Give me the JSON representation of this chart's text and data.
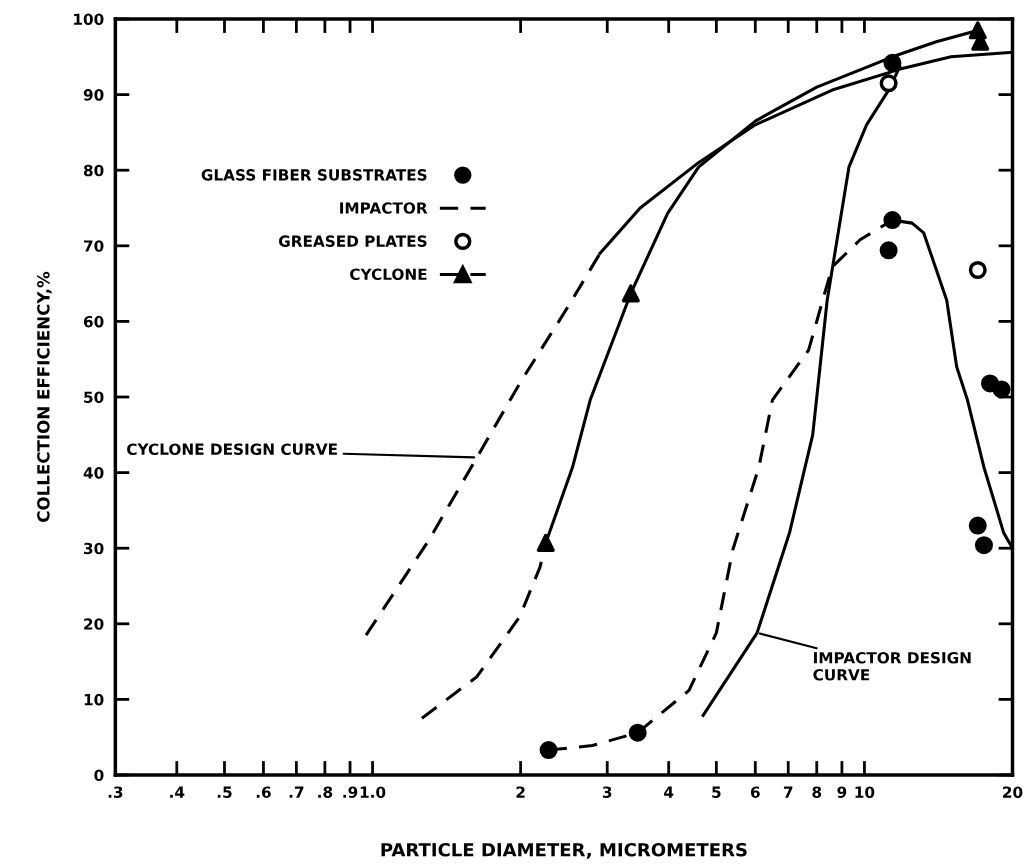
{
  "chart_data": {
    "type": "line",
    "xlabel": "PARTICLE DIAMETER, MICROMETERS",
    "ylabel": "COLLECTION EFFICIENCY,%",
    "log": "x",
    "xlim": [
      0.3,
      20
    ],
    "ylim": [
      0,
      100
    ],
    "xticks": [
      {
        "value": 0.3,
        "label": ".3"
      },
      {
        "value": 0.4,
        "label": ".4"
      },
      {
        "value": 0.5,
        "label": ".5"
      },
      {
        "value": 0.6,
        "label": ".6"
      },
      {
        "value": 0.7,
        "label": ".7"
      },
      {
        "value": 0.8,
        "label": ".8"
      },
      {
        "value": 0.9,
        "label": ".9"
      },
      {
        "value": 1.0,
        "label": "1.0"
      },
      2,
      3,
      4,
      5,
      6,
      7,
      8,
      9,
      10,
      20
    ],
    "yticks": [
      0,
      10,
      20,
      30,
      40,
      50,
      60,
      70,
      80,
      90,
      100
    ],
    "grid": false,
    "legend": "top left",
    "series": [
      {
        "name": "GLASS FIBER SUBSTRATES",
        "type": "scatter",
        "marker": "circle",
        "color": "#000000",
        "x": [
          2.28,
          3.46,
          11.4,
          11.2,
          11.4,
          17,
          17.5,
          18,
          19
        ],
        "values": [
          3.3,
          5.6,
          73.4,
          69.4,
          94.2,
          33,
          30.4,
          51.8,
          51
        ]
      },
      {
        "name": "IMPACTOR",
        "line_style": "dashed",
        "color": "#000000",
        "x": [
          2.28,
          2.8,
          3.46,
          4.4,
          5.0,
          5.4,
          6.1,
          6.5,
          7.7,
          8.6,
          9.8,
          11.4
        ],
        "values": [
          3.3,
          3.9,
          5.6,
          11.2,
          18.8,
          29.8,
          40.7,
          49.6,
          56.2,
          67.2,
          70.8,
          73.4
        ]
      },
      {
        "line_style": "solid",
        "color": "#000000",
        "x": [
          11.4,
          12.5,
          13.2,
          14.7,
          15.4,
          16.2,
          17.5,
          19.2,
          20
        ],
        "values": [
          73.4,
          73,
          71.7,
          62.8,
          54,
          49.6,
          40.7,
          32,
          30
        ]
      },
      {
        "name": "GREASED PLATES",
        "type": "scatter",
        "marker": "circle",
        "color": "#ffffff",
        "x": [
          11.2,
          17
        ],
        "values": [
          91.5,
          66.8
        ]
      },
      {
        "line_style": "dashed",
        "color": "#000000",
        "x": [
          1.26,
          1.63,
          1.99,
          2.19,
          2.25
        ],
        "values": [
          7.5,
          13,
          20.9,
          27.5,
          30.7
        ]
      },
      {
        "line_style": "solid",
        "color": "#000000",
        "x": [
          2.25,
          2.55,
          2.77,
          3.35,
          3.98,
          4.6,
          6,
          8,
          10,
          11.4,
          14,
          17
        ],
        "values": [
          30.7,
          40.7,
          49.6,
          63.7,
          74.3,
          80.4,
          86.5,
          91,
          93.5,
          95,
          97,
          98.5
        ]
      },
      {
        "name": "CYCLONE",
        "type": "scatter",
        "marker": "triangle",
        "line_style": "dashed",
        "color": "#000000",
        "x": [
          2.25,
          3.35,
          17,
          17.2
        ],
        "values": [
          30.7,
          63.7,
          98.5,
          97
        ]
      },
      {
        "line_style": "solid",
        "color": "#000000",
        "x": [
          4.7,
          6.05,
          7.04,
          7.85,
          8.4,
          9.3,
          10.1,
          11.2,
          11.8
        ],
        "values": [
          7.9,
          18.8,
          32,
          45,
          62.8,
          80.4,
          86,
          90.6,
          93.7
        ]
      },
      {
        "line_style": "dashed",
        "color": "#000000",
        "x": [
          0.97,
          1.3,
          1.63,
          2.0,
          2.5,
          2.9
        ],
        "values": [
          18.5,
          31,
          42,
          52,
          62,
          69
        ]
      },
      {
        "line_style": "solid",
        "color": "#000000",
        "x": [
          2.9,
          3.5,
          4.6,
          6,
          8.6,
          12,
          15,
          20
        ],
        "values": [
          69,
          75,
          81,
          86,
          90.6,
          93.5,
          95,
          95.6
        ]
      }
    ],
    "annotations": [
      {
        "text": "CYCLONE DESIGN CURVE",
        "x": 1.63,
        "y": 42
      },
      {
        "text": "IMPACTOR DESIGN\nCURVE",
        "x": 6.05,
        "y": 18.8
      }
    ]
  }
}
